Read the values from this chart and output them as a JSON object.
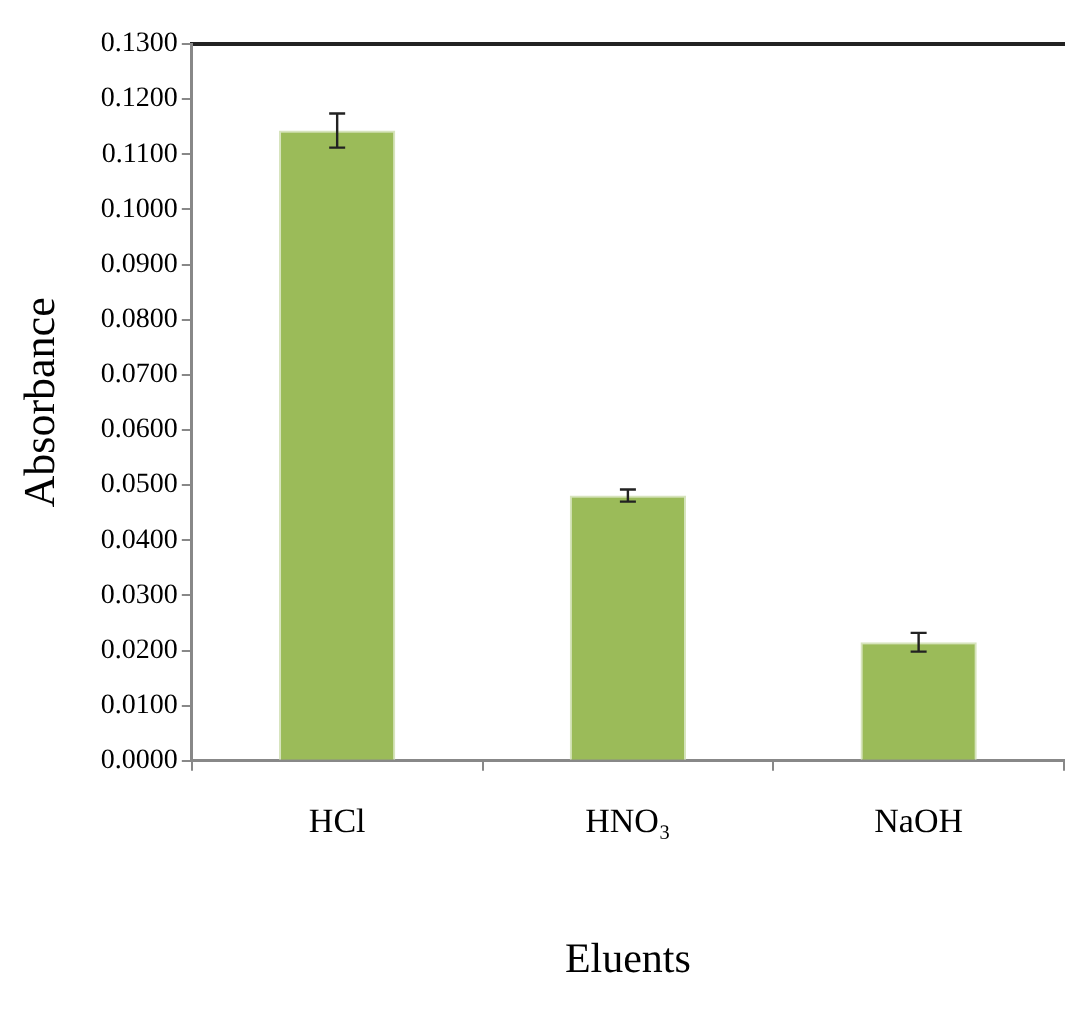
{
  "chart_data": {
    "type": "bar",
    "xlabel": "Eluents",
    "ylabel": "Absorbance",
    "categories": [
      "HCl",
      "HNO₃",
      "NaOH"
    ],
    "values": [
      0.1143,
      0.0481,
      0.0215
    ],
    "errors": [
      0.0031,
      0.0011,
      0.0017
    ],
    "color": "#9bbb59",
    "ylim": [
      0,
      0.13
    ],
    "yticks": [
      {
        "value": 0,
        "label": "0.0000"
      },
      {
        "value": 0.01,
        "label": "0.0100"
      },
      {
        "value": 0.02,
        "label": "0.0200"
      },
      {
        "value": 0.03,
        "label": "0.0300"
      },
      {
        "value": 0.04,
        "label": "0.0400"
      },
      {
        "value": 0.05,
        "label": "0.0500"
      },
      {
        "value": 0.06,
        "label": "0.0600"
      },
      {
        "value": 0.07,
        "label": "0.0700"
      },
      {
        "value": 0.08,
        "label": "0.0800"
      },
      {
        "value": 0.09,
        "label": "0.0900"
      },
      {
        "value": 0.1,
        "label": "0.1000"
      },
      {
        "value": 0.11,
        "label": "0.1100"
      },
      {
        "value": 0.12,
        "label": "0.1200"
      },
      {
        "value": 0.13,
        "label": "0.1300"
      }
    ],
    "grid": false,
    "legend": false
  }
}
